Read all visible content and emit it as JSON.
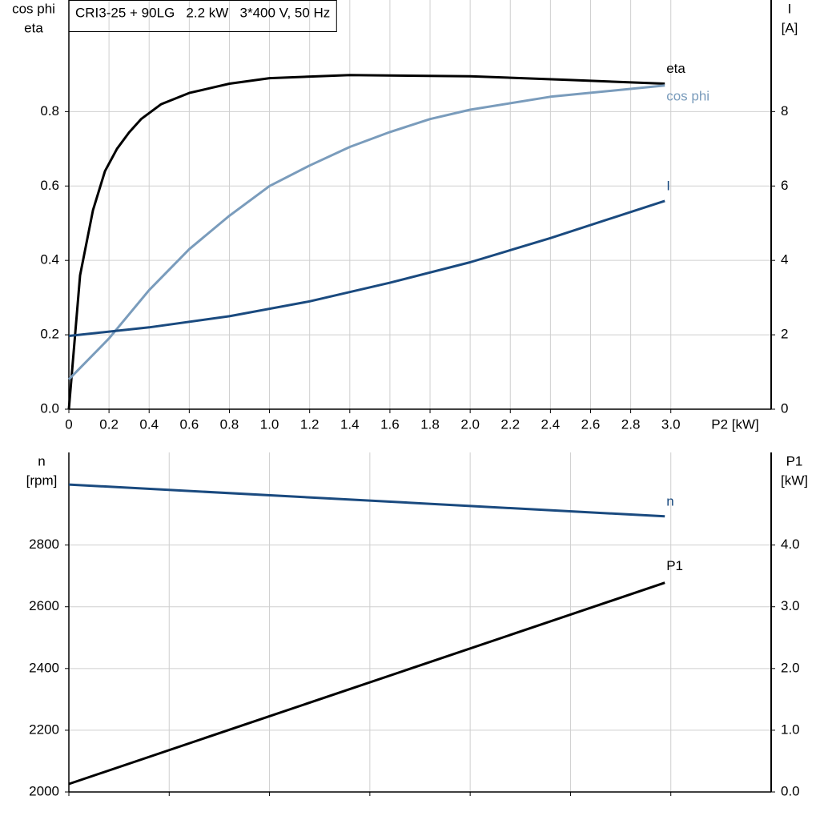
{
  "chart_data": [
    {
      "type": "line",
      "title": "CRI3-25 + 90LG   2.2 kW   3*400 V, 50 Hz",
      "ylabel": [
        "cos phi",
        "eta"
      ],
      "y2label": [
        "I",
        "[A]"
      ],
      "xlabel": "P2 [kW]",
      "xlim": [
        0,
        3.5
      ],
      "ylim": [
        0,
        1.1
      ],
      "y2lim": [
        0,
        11
      ],
      "xticks": [
        0,
        0.2,
        0.4,
        0.6,
        0.8,
        {
          "value": 1,
          "label": "1.0"
        },
        1.2,
        1.4,
        1.6,
        1.8,
        {
          "value": 2,
          "label": "2.0"
        },
        2.2,
        2.4,
        2.6,
        2.8,
        {
          "value": 3,
          "label": "3.0"
        }
      ],
      "yticks": [
        {
          "value": 0,
          "label": "0.0"
        },
        0.2,
        0.4,
        0.6,
        0.8
      ],
      "y2ticks": [
        0,
        2,
        4,
        6,
        8
      ],
      "show_xtick_labels": true,
      "grid": true,
      "series": [
        {
          "name": "eta",
          "color": "#000000",
          "x": [
            0,
            0.056,
            0.12,
            0.18,
            0.24,
            0.3,
            0.36,
            0.46,
            0.6,
            0.8,
            1.0,
            1.4,
            2.0,
            2.5,
            2.97
          ],
          "values": [
            0,
            0.36,
            0.535,
            0.64,
            0.7,
            0.744,
            0.78,
            0.82,
            0.85,
            0.875,
            0.89,
            0.898,
            0.895,
            0.885,
            0.875
          ]
        },
        {
          "name": "cos phi",
          "color": "#7a9cbc",
          "x": [
            0,
            0.2,
            0.4,
            0.6,
            0.8,
            1.0,
            1.2,
            1.4,
            1.6,
            1.8,
            2.0,
            2.4,
            2.97
          ],
          "values": [
            0.08,
            0.19,
            0.32,
            0.43,
            0.52,
            0.6,
            0.655,
            0.705,
            0.745,
            0.78,
            0.805,
            0.84,
            0.87
          ]
        },
        {
          "name": "I",
          "color": "#1a4a7f",
          "axis": "y2",
          "x": [
            0,
            0.4,
            0.8,
            1.2,
            1.6,
            2.0,
            2.4,
            2.97
          ],
          "values": [
            1.97,
            2.2,
            2.5,
            2.9,
            3.4,
            3.95,
            4.6,
            5.6
          ]
        }
      ]
    },
    {
      "type": "line",
      "ylabel": [
        "n",
        "[rpm]"
      ],
      "y2label": [
        "P1",
        "[kW]"
      ],
      "xlim": [
        0,
        3.5
      ],
      "ylim": [
        2000,
        3100
      ],
      "y2lim": [
        0,
        5.5
      ],
      "xticks": [
        0,
        0.5,
        1,
        1.5,
        2,
        2.5,
        3
      ],
      "yticks": [
        2000,
        2200,
        2400,
        2600,
        2800
      ],
      "y2ticks": [
        {
          "value": 0,
          "label": "0.0"
        },
        {
          "value": 1,
          "label": "1.0"
        },
        {
          "value": 2,
          "label": "2.0"
        },
        {
          "value": 3,
          "label": "3.0"
        },
        {
          "value": 4,
          "label": "4.0"
        }
      ],
      "show_xtick_labels": false,
      "grid": true,
      "series": [
        {
          "name": "n",
          "color": "#1a4a7f",
          "x": [
            0,
            2.97
          ],
          "values": [
            2996,
            2893
          ]
        },
        {
          "name": "P1",
          "color": "#000000",
          "axis": "y2",
          "x": [
            0,
            2.97
          ],
          "values": [
            0.13,
            3.39
          ]
        }
      ]
    }
  ]
}
